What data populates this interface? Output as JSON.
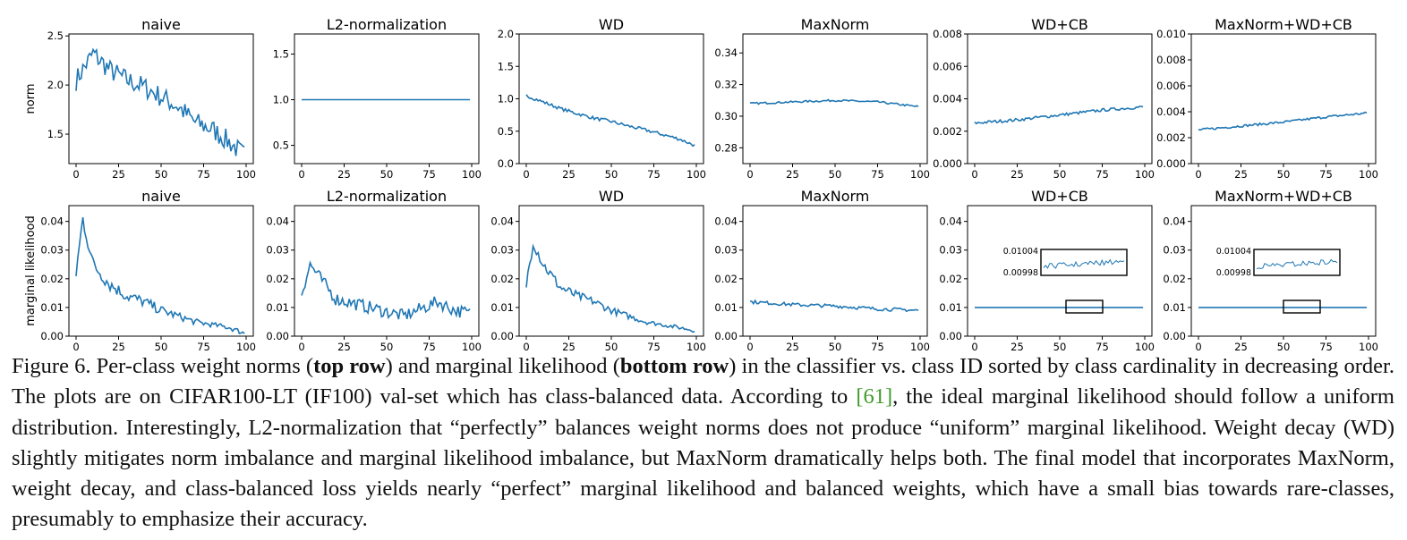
{
  "figure": {
    "panels": [
      {
        "id": "top-naive",
        "row": "top",
        "title": "naive",
        "ylabel": "norm",
        "yticks": [
          "1.5",
          "2.0",
          "2.5"
        ],
        "ylim": [
          1.2,
          2.52
        ]
      },
      {
        "id": "top-l2",
        "row": "top",
        "title": "L2-normalization",
        "yticks": [
          "0.5",
          "1.0",
          "1.5"
        ],
        "ylim": [
          0.3,
          1.72
        ]
      },
      {
        "id": "top-wd",
        "row": "top",
        "title": "WD",
        "yticks": [
          "0.0",
          "0.5",
          "1.0",
          "1.5",
          "2.0"
        ],
        "ylim": [
          0,
          2.0
        ]
      },
      {
        "id": "top-maxnorm",
        "row": "top",
        "title": "MaxNorm",
        "yticks": [
          "0.28",
          "0.30",
          "0.32",
          "0.34"
        ],
        "ylim": [
          0.27,
          0.352
        ]
      },
      {
        "id": "top-wdcb",
        "row": "top",
        "title": "WD+CB",
        "yticks": [
          "0.000",
          "0.002",
          "0.004",
          "0.006",
          "0.008"
        ],
        "ylim": [
          0,
          0.008
        ]
      },
      {
        "id": "top-all",
        "row": "top",
        "title": "MaxNorm+WD+CB",
        "yticks": [
          "0.000",
          "0.002",
          "0.004",
          "0.006",
          "0.008",
          "0.010"
        ],
        "ylim": [
          0,
          0.01
        ]
      },
      {
        "id": "bot-naive",
        "row": "bottom",
        "title": "naive",
        "ylabel": "marginal likelihood",
        "yticks": [
          "0.00",
          "0.01",
          "0.02",
          "0.03",
          "0.04"
        ],
        "ylim": [
          0,
          0.0455
        ]
      },
      {
        "id": "bot-l2",
        "row": "bottom",
        "title": "L2-normalization",
        "yticks": [
          "0.00",
          "0.01",
          "0.02",
          "0.03",
          "0.04"
        ],
        "ylim": [
          0,
          0.0455
        ]
      },
      {
        "id": "bot-wd",
        "row": "bottom",
        "title": "WD",
        "yticks": [
          "0.00",
          "0.01",
          "0.02",
          "0.03",
          "0.04"
        ],
        "ylim": [
          0,
          0.0455
        ]
      },
      {
        "id": "bot-maxnorm",
        "row": "bottom",
        "title": "MaxNorm",
        "yticks": [
          "0.00",
          "0.01",
          "0.02",
          "0.03",
          "0.04"
        ],
        "ylim": [
          0,
          0.0455
        ]
      },
      {
        "id": "bot-wdcb",
        "row": "bottom",
        "title": "WD+CB",
        "yticks": [
          "0.00",
          "0.01",
          "0.02",
          "0.03",
          "0.04"
        ],
        "ylim": [
          0,
          0.0455
        ],
        "inset": {
          "yticks": [
            "0.01004",
            "0.00998"
          ]
        }
      },
      {
        "id": "bot-all",
        "row": "bottom",
        "title": "MaxNorm+WD+CB",
        "yticks": [
          "0.00",
          "0.01",
          "0.02",
          "0.03",
          "0.04"
        ],
        "ylim": [
          0,
          0.0455
        ],
        "inset": {
          "yticks": [
            "0.01004",
            "0.00998"
          ]
        }
      }
    ],
    "xticks": [
      "0",
      "25",
      "50",
      "75",
      "100"
    ]
  },
  "chart_data": [
    {
      "type": "line",
      "title": "naive",
      "ylabel": "norm",
      "x": [
        0,
        10,
        20,
        30,
        40,
        50,
        60,
        70,
        80,
        90,
        99
      ],
      "values": [
        2.05,
        2.32,
        2.15,
        2.05,
        1.98,
        1.88,
        1.78,
        1.62,
        1.55,
        1.42,
        1.28
      ]
    },
    {
      "type": "line",
      "title": "L2-normalization",
      "x": [
        0,
        99
      ],
      "values": [
        1.0,
        1.0
      ]
    },
    {
      "type": "line",
      "title": "WD",
      "x": [
        0,
        10,
        20,
        30,
        40,
        50,
        60,
        70,
        80,
        90,
        99
      ],
      "values": [
        1.05,
        0.95,
        0.85,
        0.77,
        0.7,
        0.65,
        0.58,
        0.52,
        0.45,
        0.38,
        0.28
      ]
    },
    {
      "type": "line",
      "title": "MaxNorm",
      "x": [
        0,
        25,
        50,
        75,
        99
      ],
      "values": [
        0.308,
        0.309,
        0.31,
        0.309,
        0.306
      ]
    },
    {
      "type": "line",
      "title": "WD+CB",
      "x": [
        0,
        25,
        50,
        75,
        99
      ],
      "values": [
        0.0025,
        0.0027,
        0.003,
        0.0033,
        0.0035
      ]
    },
    {
      "type": "line",
      "title": "MaxNorm+WD+CB",
      "x": [
        0,
        25,
        50,
        75,
        99
      ],
      "values": [
        0.0026,
        0.0029,
        0.0032,
        0.0036,
        0.0039
      ]
    },
    {
      "type": "line",
      "title": "naive",
      "ylabel": "marginal likelihood",
      "x": [
        0,
        4,
        10,
        20,
        30,
        40,
        50,
        60,
        70,
        80,
        90,
        99
      ],
      "values": [
        0.022,
        0.041,
        0.025,
        0.018,
        0.014,
        0.012,
        0.009,
        0.007,
        0.005,
        0.004,
        0.003,
        0.001
      ]
    },
    {
      "type": "line",
      "title": "L2-normalization",
      "x": [
        0,
        5,
        20,
        40,
        60,
        80,
        90,
        99
      ],
      "values": [
        0.015,
        0.025,
        0.013,
        0.01,
        0.007,
        0.012,
        0.009,
        0.008
      ]
    },
    {
      "type": "line",
      "title": "WD",
      "x": [
        0,
        4,
        10,
        20,
        30,
        40,
        50,
        60,
        70,
        80,
        90,
        99
      ],
      "values": [
        0.018,
        0.033,
        0.025,
        0.017,
        0.014,
        0.012,
        0.009,
        0.007,
        0.005,
        0.004,
        0.003,
        0.002
      ]
    },
    {
      "type": "line",
      "title": "MaxNorm",
      "x": [
        0,
        25,
        50,
        75,
        99
      ],
      "values": [
        0.012,
        0.011,
        0.0105,
        0.0095,
        0.009
      ]
    },
    {
      "type": "line",
      "title": "WD+CB",
      "x": [
        0,
        99
      ],
      "values": [
        0.01,
        0.01
      ]
    },
    {
      "type": "line",
      "title": "MaxNorm+WD+CB",
      "x": [
        0,
        99
      ],
      "values": [
        0.01,
        0.01
      ]
    }
  ],
  "caption": {
    "label": "Figure 6.",
    "p1": " Per-class weight norms (",
    "b1": "top row",
    "p2": ") and marginal likelihood (",
    "b2": "bottom row",
    "p3": ") in the classifier vs. class ID sorted by class cardinality in decreasing order. The plots are on CIFAR100-LT (IF100) val-set which has class-balanced data. According to ",
    "cite": "[61]",
    "p4": ", the ideal marginal likelihood should follow a uniform distribution. Interestingly, L2-normalization that “perfectly” balances weight norms does not produce “uniform” marginal likelihood. Weight decay (WD) slightly mitigates norm imbalance and marginal likelihood imbalance, but MaxNorm dramatically helps both. The final model that incorporates MaxNorm, weight decay, and class-balanced loss yields nearly “perfect” marginal likelihood and balanced weights, which have a small bias towards rare-classes, presumably to emphasize their accuracy."
  }
}
